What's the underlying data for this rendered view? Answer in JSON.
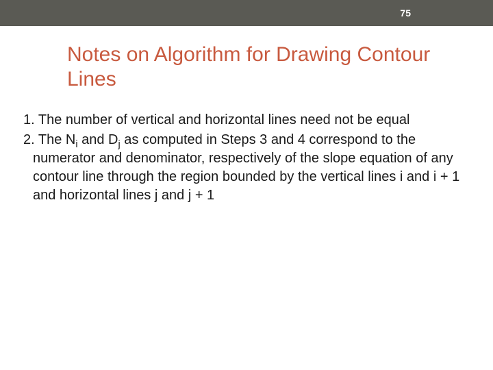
{
  "header": {
    "page_number": "75",
    "bar_color": "#5a5a54",
    "text_color": "#ffffff"
  },
  "title": {
    "text": "Notes on Algorithm for Drawing Contour Lines",
    "color": "#c85a3f",
    "fontsize": 30
  },
  "items": [
    {
      "number": "1.",
      "text": "The number of vertical and horizontal lines need not be equal"
    },
    {
      "number": "2.",
      "prefix": "The N",
      "sub1": "i",
      "mid1": " and D",
      "sub2": "j",
      "rest": " as computed in Steps 3 and 4 correspond to the numerator and denominator, respectively of the slope equation of any contour line through the region bounded by the vertical lines i and i + 1 and horizontal lines j and j + 1"
    }
  ],
  "body": {
    "fontsize": 20,
    "text_color": "#1a1a1a",
    "background": "#ffffff"
  }
}
